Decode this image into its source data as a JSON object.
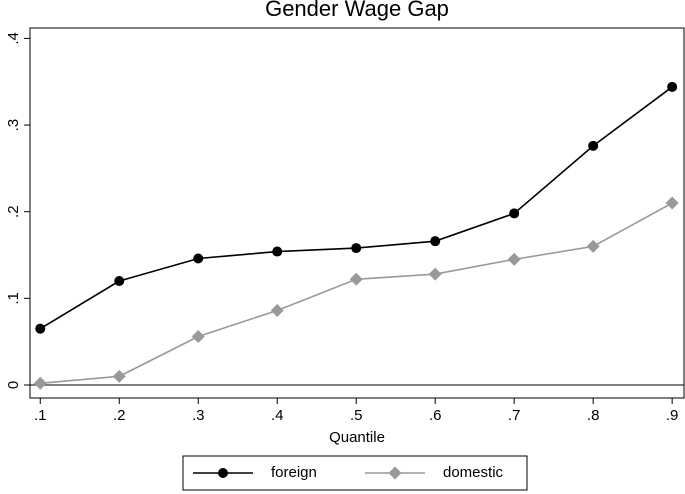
{
  "chart_data": {
    "type": "line",
    "title": "Gender Wage Gap",
    "x_label": "Quantile",
    "x": [
      0.1,
      0.2,
      0.3,
      0.4,
      0.5,
      0.6,
      0.7,
      0.8,
      0.9
    ],
    "series": [
      {
        "name": "foreign",
        "color": "#000000",
        "marker": "circle",
        "values": [
          0.065,
          0.12,
          0.146,
          0.154,
          0.158,
          0.166,
          0.198,
          0.276,
          0.344
        ]
      },
      {
        "name": "domestic",
        "color": "#999999",
        "marker": "diamond",
        "values": [
          0.002,
          0.01,
          0.056,
          0.086,
          0.122,
          0.128,
          0.145,
          0.16,
          0.21
        ]
      }
    ],
    "xlim": [
      0.087,
      0.915
    ],
    "ylim": [
      -0.015,
      0.412
    ],
    "xticks": [
      {
        "value": 0.1,
        "label": ".1"
      },
      {
        "value": 0.2,
        "label": ".2"
      },
      {
        "value": 0.3,
        "label": ".3"
      },
      {
        "value": 0.4,
        "label": ".4"
      },
      {
        "value": 0.5,
        "label": ".5"
      },
      {
        "value": 0.6,
        "label": ".6"
      },
      {
        "value": 0.7,
        "label": ".7"
      },
      {
        "value": 0.8,
        "label": ".8"
      },
      {
        "value": 0.9,
        "label": ".9"
      }
    ],
    "yticks": [
      0,
      {
        "value": 0.1,
        "label": ".1"
      },
      {
        "value": 0.2,
        "label": ".2"
      },
      {
        "value": 0.3,
        "label": ".3"
      },
      {
        "value": 0.4,
        "label": ".4"
      }
    ],
    "reference_line_y": 0,
    "legend": "bottom"
  }
}
